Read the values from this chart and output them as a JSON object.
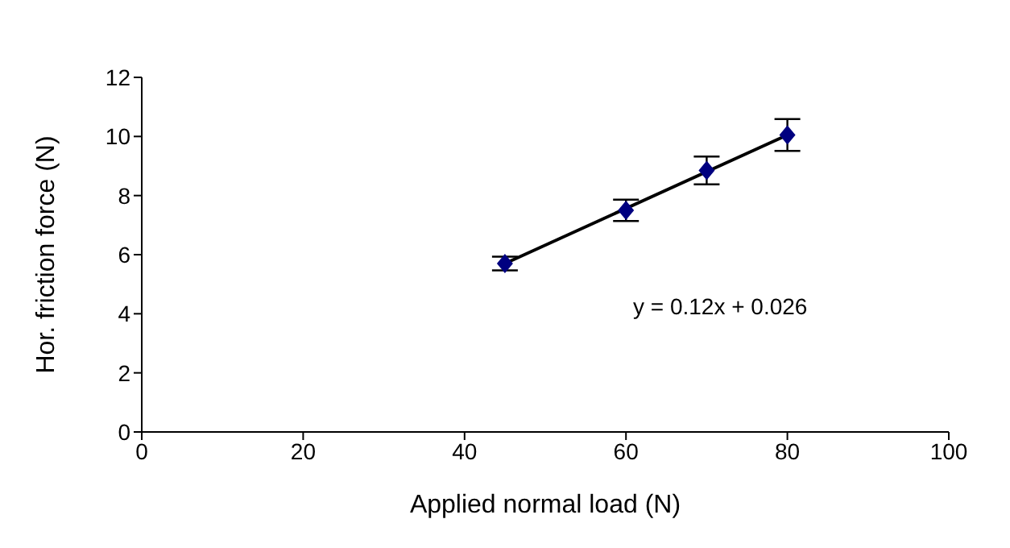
{
  "chart_data": {
    "type": "scatter",
    "xlabel": "Applied normal load (N)",
    "ylabel": "Hor. friction force (N)",
    "xlim": [
      0,
      100
    ],
    "xticks": [
      0,
      20,
      40,
      60,
      80,
      100
    ],
    "ylim": [
      0,
      12
    ],
    "yticks": [
      0,
      2,
      4,
      6,
      8,
      10,
      12
    ],
    "grid": false,
    "legend": false,
    "marker": "diamond",
    "annotations": [
      "y = 0.12x + 0.026"
    ],
    "series": [
      {
        "color": "#000080",
        "x": [
          45,
          60,
          70,
          80
        ],
        "values": [
          5.7,
          7.5,
          8.85,
          10.05
        ],
        "errors": [
          0.23,
          0.36,
          0.47,
          0.54
        ]
      },
      {
        "type": "line",
        "color": "#000000",
        "x": [
          45,
          80
        ],
        "values": [
          5.7,
          10.05
        ],
        "line_style": "solid",
        "marker": "none"
      }
    ]
  }
}
